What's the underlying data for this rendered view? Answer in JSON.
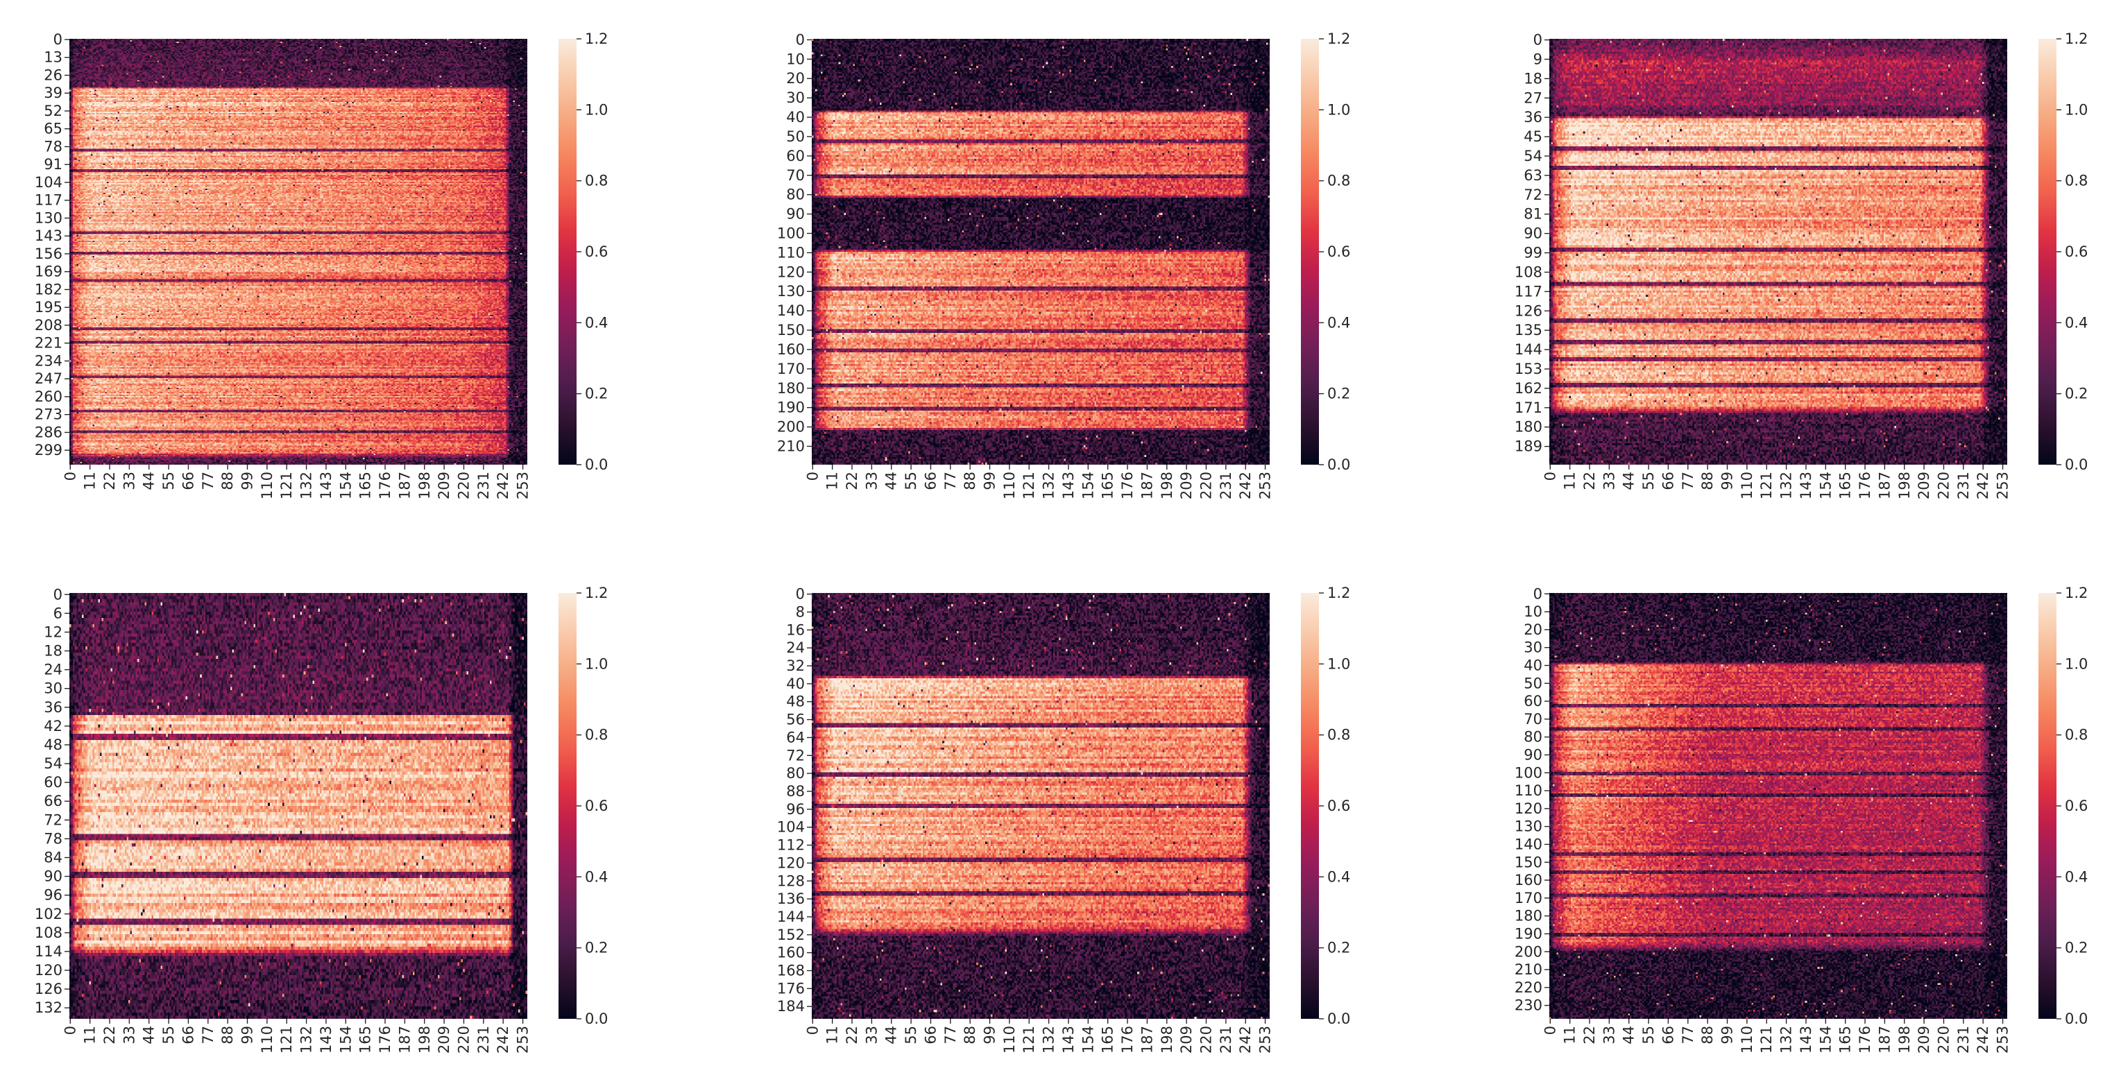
{
  "chart_data": [
    {
      "type": "heatmap",
      "rows": 310,
      "cols": 256,
      "yticks": [
        "0",
        "13",
        "26",
        "39",
        "52",
        "65",
        "78",
        "91",
        "104",
        "117",
        "130",
        "143",
        "156",
        "169",
        "182",
        "195",
        "208",
        "221",
        "234",
        "247",
        "260",
        "273",
        "286",
        "299"
      ],
      "xticks": [
        "0",
        "11",
        "22",
        "33",
        "44",
        "55",
        "66",
        "77",
        "88",
        "99",
        "110",
        "121",
        "132",
        "143",
        "154",
        "165",
        "176",
        "187",
        "198",
        "209",
        "220",
        "231",
        "242",
        "253"
      ],
      "colorbar_ticks": [
        "0.0",
        "0.2",
        "0.4",
        "0.6",
        "0.8",
        "1.0",
        "1.2"
      ],
      "vmin": 0.0,
      "vmax": 1.2,
      "colormap": "rocket",
      "col_profile": [
        [
          0,
          0.12
        ],
        [
          2,
          0.7
        ],
        [
          11,
          0.95
        ],
        [
          60,
          0.88
        ],
        [
          150,
          0.8
        ],
        [
          220,
          0.72
        ],
        [
          243,
          0.6
        ],
        [
          246,
          0.15
        ],
        [
          255,
          0.1
        ]
      ],
      "row_profile": [
        [
          0,
          0.2
        ],
        [
          34,
          0.25
        ],
        [
          36,
          1.0
        ],
        [
          300,
          0.9
        ],
        [
          305,
          0.25
        ],
        [
          309,
          0.2
        ]
      ],
      "dark_rows": [
        80,
        95,
        140,
        155,
        175,
        210,
        220,
        245,
        270,
        285
      ]
    },
    {
      "type": "heatmap",
      "rows": 220,
      "cols": 256,
      "yticks": [
        "0",
        "10",
        "20",
        "30",
        "40",
        "50",
        "60",
        "70",
        "80",
        "90",
        "100",
        "110",
        "120",
        "130",
        "140",
        "150",
        "160",
        "170",
        "180",
        "190",
        "200",
        "210"
      ],
      "xticks": [
        "0",
        "11",
        "22",
        "33",
        "44",
        "55",
        "66",
        "77",
        "88",
        "99",
        "110",
        "121",
        "132",
        "143",
        "154",
        "165",
        "176",
        "187",
        "198",
        "209",
        "220",
        "231",
        "242",
        "253"
      ],
      "colorbar_ticks": [
        "0.0",
        "0.2",
        "0.4",
        "0.6",
        "0.8",
        "1.0",
        "1.2"
      ],
      "vmin": 0.0,
      "vmax": 1.2,
      "colormap": "rocket",
      "col_profile": [
        [
          0,
          0.1
        ],
        [
          3,
          0.6
        ],
        [
          12,
          0.95
        ],
        [
          80,
          0.85
        ],
        [
          160,
          0.78
        ],
        [
          240,
          0.72
        ],
        [
          245,
          0.15
        ],
        [
          255,
          0.1
        ]
      ],
      "row_profile": [
        [
          0,
          0.1
        ],
        [
          36,
          0.12
        ],
        [
          38,
          0.95
        ],
        [
          80,
          0.85
        ],
        [
          82,
          0.1
        ],
        [
          108,
          0.12
        ],
        [
          110,
          0.95
        ],
        [
          200,
          0.85
        ],
        [
          202,
          0.15
        ],
        [
          219,
          0.12
        ]
      ],
      "dark_rows": [
        52,
        70,
        128,
        150,
        160,
        178,
        190
      ]
    },
    {
      "type": "heatmap",
      "rows": 198,
      "cols": 256,
      "yticks": [
        "0",
        "9",
        "18",
        "27",
        "36",
        "45",
        "54",
        "63",
        "72",
        "81",
        "90",
        "99",
        "108",
        "117",
        "126",
        "135",
        "144",
        "153",
        "162",
        "171",
        "180",
        "189"
      ],
      "xticks": [
        "0",
        "11",
        "22",
        "33",
        "44",
        "55",
        "66",
        "77",
        "88",
        "99",
        "110",
        "121",
        "132",
        "143",
        "154",
        "165",
        "176",
        "187",
        "198",
        "209",
        "220",
        "231",
        "242",
        "253"
      ],
      "colorbar_ticks": [
        "0.0",
        "0.2",
        "0.4",
        "0.6",
        "0.8",
        "1.0",
        "1.2"
      ],
      "vmin": 0.0,
      "vmax": 1.2,
      "colormap": "rocket",
      "col_profile": [
        [
          0,
          0.15
        ],
        [
          3,
          0.7
        ],
        [
          12,
          1.0
        ],
        [
          90,
          0.9
        ],
        [
          170,
          0.85
        ],
        [
          240,
          0.8
        ],
        [
          246,
          0.15
        ],
        [
          255,
          0.12
        ]
      ],
      "row_profile": [
        [
          0,
          0.25
        ],
        [
          10,
          0.5
        ],
        [
          30,
          0.4
        ],
        [
          35,
          0.2
        ],
        [
          37,
          1.0
        ],
        [
          170,
          0.9
        ],
        [
          174,
          0.2
        ],
        [
          197,
          0.15
        ]
      ],
      "dark_rows": [
        50,
        59,
        97,
        113,
        130,
        140,
        148,
        160
      ]
    },
    {
      "type": "heatmap",
      "rows": 136,
      "cols": 256,
      "yticks": [
        "0",
        "6",
        "12",
        "18",
        "24",
        "30",
        "36",
        "42",
        "48",
        "54",
        "60",
        "66",
        "72",
        "78",
        "84",
        "90",
        "96",
        "102",
        "108",
        "114",
        "120",
        "126",
        "132"
      ],
      "xticks": [
        "0",
        "11",
        "22",
        "33",
        "44",
        "55",
        "66",
        "77",
        "88",
        "99",
        "110",
        "121",
        "132",
        "143",
        "154",
        "165",
        "176",
        "187",
        "198",
        "209",
        "220",
        "231",
        "242",
        "253"
      ],
      "colorbar_ticks": [
        "0.0",
        "0.2",
        "0.4",
        "0.6",
        "0.8",
        "1.0",
        "1.2"
      ],
      "vmin": 0.0,
      "vmax": 1.2,
      "colormap": "rocket",
      "col_profile": [
        [
          0,
          0.15
        ],
        [
          3,
          0.7
        ],
        [
          12,
          1.0
        ],
        [
          120,
          0.92
        ],
        [
          200,
          0.9
        ],
        [
          245,
          0.85
        ],
        [
          248,
          0.15
        ],
        [
          255,
          0.12
        ]
      ],
      "row_profile": [
        [
          0,
          0.2
        ],
        [
          38,
          0.25
        ],
        [
          39,
          1.0
        ],
        [
          112,
          0.95
        ],
        [
          116,
          0.2
        ],
        [
          135,
          0.15
        ]
      ],
      "dark_rows": [
        45,
        77,
        89,
        104
      ]
    },
    {
      "type": "heatmap",
      "rows": 190,
      "cols": 256,
      "yticks": [
        "0",
        "8",
        "16",
        "24",
        "32",
        "40",
        "48",
        "56",
        "64",
        "72",
        "80",
        "88",
        "96",
        "104",
        "112",
        "120",
        "128",
        "136",
        "144",
        "152",
        "160",
        "168",
        "176",
        "184"
      ],
      "xticks": [
        "0",
        "11",
        "22",
        "33",
        "44",
        "55",
        "66",
        "77",
        "88",
        "99",
        "110",
        "121",
        "132",
        "143",
        "154",
        "165",
        "176",
        "187",
        "198",
        "209",
        "220",
        "231",
        "242",
        "253"
      ],
      "colorbar_ticks": [
        "0.0",
        "0.2",
        "0.4",
        "0.6",
        "0.8",
        "1.0",
        "1.2"
      ],
      "vmin": 0.0,
      "vmax": 1.2,
      "colormap": "rocket",
      "col_profile": [
        [
          0,
          0.15
        ],
        [
          3,
          0.7
        ],
        [
          12,
          1.0
        ],
        [
          100,
          0.88
        ],
        [
          180,
          0.8
        ],
        [
          240,
          0.78
        ],
        [
          246,
          0.12
        ],
        [
          255,
          0.1
        ]
      ],
      "row_profile": [
        [
          0,
          0.15
        ],
        [
          36,
          0.2
        ],
        [
          38,
          1.0
        ],
        [
          148,
          0.85
        ],
        [
          153,
          0.15
        ],
        [
          189,
          0.12
        ]
      ],
      "dark_rows": [
        58,
        80,
        94,
        118,
        133
      ]
    },
    {
      "type": "heatmap",
      "rows": 238,
      "cols": 256,
      "yticks": [
        "0",
        "10",
        "20",
        "30",
        "40",
        "50",
        "60",
        "70",
        "80",
        "90",
        "100",
        "110",
        "120",
        "130",
        "140",
        "150",
        "160",
        "170",
        "180",
        "190",
        "200",
        "210",
        "220",
        "230"
      ],
      "xticks": [
        "0",
        "11",
        "22",
        "33",
        "44",
        "55",
        "66",
        "77",
        "88",
        "99",
        "110",
        "121",
        "132",
        "143",
        "154",
        "165",
        "176",
        "187",
        "198",
        "209",
        "220",
        "231",
        "242",
        "253"
      ],
      "colorbar_ticks": [
        "0.0",
        "0.2",
        "0.4",
        "0.6",
        "0.8",
        "1.0",
        "1.2"
      ],
      "vmin": 0.0,
      "vmax": 1.2,
      "colormap": "rocket",
      "col_profile": [
        [
          0,
          0.12
        ],
        [
          3,
          0.6
        ],
        [
          12,
          0.95
        ],
        [
          90,
          0.6
        ],
        [
          170,
          0.58
        ],
        [
          240,
          0.55
        ],
        [
          246,
          0.15
        ],
        [
          255,
          0.1
        ]
      ],
      "row_profile": [
        [
          0,
          0.12
        ],
        [
          38,
          0.15
        ],
        [
          40,
          0.9
        ],
        [
          195,
          0.75
        ],
        [
          200,
          0.12
        ],
        [
          237,
          0.1
        ]
      ],
      "dark_rows": [
        62,
        75,
        100,
        112,
        145,
        155,
        168,
        190
      ]
    }
  ],
  "colors": {
    "background": "#ffffff",
    "text": "#262626",
    "colormap_stops": [
      "#03051a",
      "#2b112e",
      "#4c1d4b",
      "#701f57",
      "#961c5b",
      "#be1e4c",
      "#e13342",
      "#f1604d",
      "#f6865f",
      "#f6aa82",
      "#f9cbac",
      "#faebdd"
    ]
  }
}
